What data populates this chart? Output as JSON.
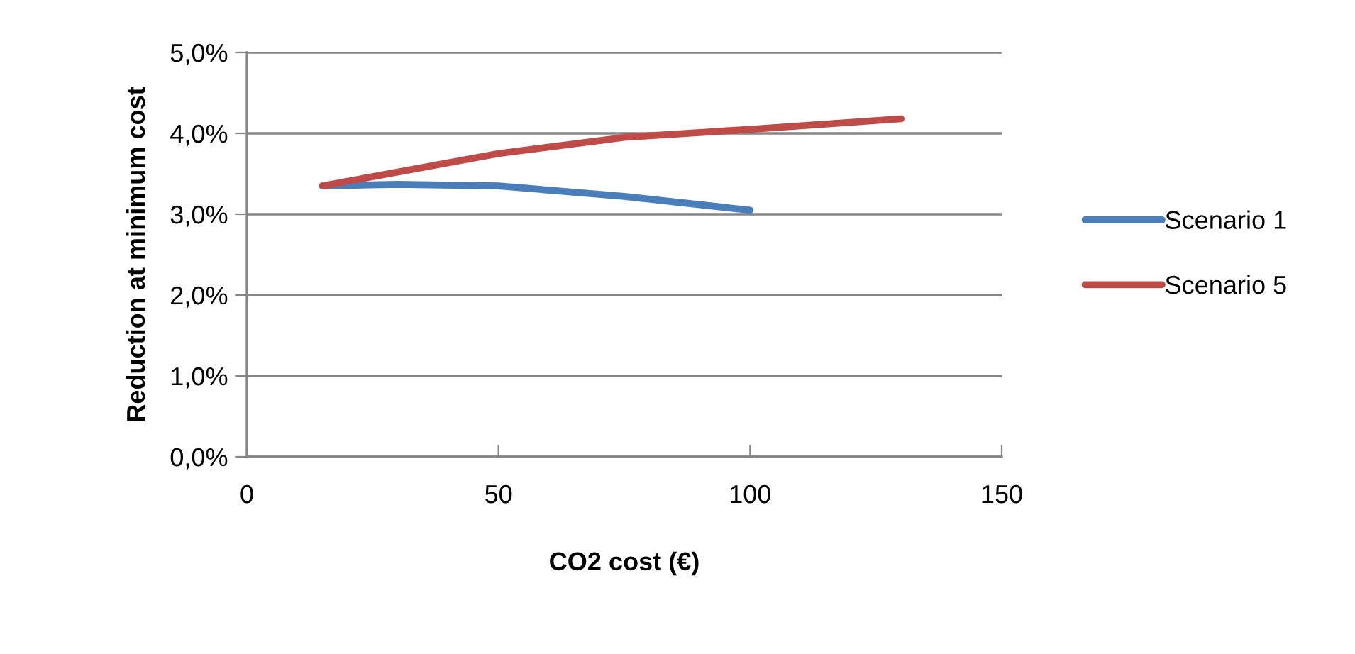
{
  "chart_data": {
    "type": "line",
    "xlabel": "CO2 cost (€)",
    "ylabel": "Reduction at minimum cost",
    "xlim": [
      0,
      150
    ],
    "xticks": [
      0,
      50,
      100,
      150
    ],
    "ylim": [
      0,
      5
    ],
    "yticks": [
      {
        "value": 0,
        "label": "0,0%"
      },
      {
        "value": 1,
        "label": "1,0%"
      },
      {
        "value": 2,
        "label": "2,0%"
      },
      {
        "value": 3,
        "label": "3,0%"
      },
      {
        "value": 4,
        "label": "4,0%"
      },
      {
        "value": 5,
        "label": "5,0%"
      }
    ],
    "grid": "y",
    "legend": "right",
    "marker": "none",
    "line_style": "solid",
    "series": [
      {
        "name": "Scenario 1",
        "color": "#4a7ebb",
        "x": [
          15,
          30,
          50,
          75,
          100
        ],
        "values": [
          3.35,
          3.37,
          3.35,
          3.22,
          3.05
        ]
      },
      {
        "name": "Scenario 5",
        "color": "#be4b48",
        "x": [
          15,
          50,
          75,
          100,
          130
        ],
        "values": [
          3.35,
          3.75,
          3.95,
          4.05,
          4.18
        ]
      }
    ]
  }
}
